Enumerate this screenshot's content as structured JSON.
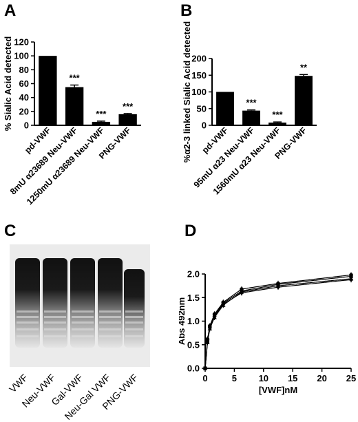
{
  "panels": {
    "a": {
      "letter": "A"
    },
    "b": {
      "letter": "B"
    },
    "c": {
      "letter": "C"
    },
    "d": {
      "letter": "D"
    }
  },
  "chart_data": [
    {
      "panel": "A",
      "type": "bar",
      "ylabel": "% Sialic Acid detected",
      "xlabel": "",
      "categories": [
        "pd-VWF",
        "8mU α23689 Neu-VWF",
        "1250mU α23689 Neu-VWF",
        "PNG-VWF"
      ],
      "values": [
        100,
        55,
        5,
        16
      ],
      "errors": [
        0,
        3,
        1,
        1
      ],
      "significance": [
        "",
        "***",
        "***",
        "***"
      ],
      "ylim": [
        0,
        120
      ],
      "yticks": [
        0,
        20,
        40,
        60,
        80,
        100,
        120
      ],
      "bar_color": "#000000",
      "grid": false
    },
    {
      "panel": "B",
      "type": "bar",
      "ylabel": "%α2-3 linked Sialic Acid detected",
      "xlabel": "",
      "categories": [
        "pd-VWF",
        "95mU α23 Neu-VWF",
        "1560mU α23 Neu-VWF",
        "PNG-VWF"
      ],
      "values": [
        100,
        44,
        8,
        148
      ],
      "errors": [
        0,
        2,
        2,
        4
      ],
      "significance": [
        "",
        "***",
        "***",
        "**"
      ],
      "ylim": [
        0,
        200
      ],
      "yticks": [
        0,
        50,
        100,
        150,
        200
      ],
      "bar_color": "#000000",
      "grid": false
    },
    {
      "panel": "C",
      "type": "gel",
      "lanes": [
        "VWF",
        "Neu-VWF",
        "Gal-VWF",
        "Neu-Gal VWF",
        "PNG-VWF"
      ]
    },
    {
      "panel": "D",
      "type": "line",
      "xlabel": "[VWF]nM",
      "ylabel": "Abs 492nm",
      "xlim": [
        0,
        25
      ],
      "ylim": [
        0,
        2.0
      ],
      "xticks": [
        0,
        5,
        10,
        15,
        20,
        25
      ],
      "yticks": [
        0.0,
        0.5,
        1.0,
        1.5,
        2.0
      ],
      "x": [
        0,
        0.4,
        0.8,
        1.6,
        3.1,
        6.25,
        12.5,
        25
      ],
      "series": [
        {
          "values": [
            0,
            0.62,
            0.9,
            1.15,
            1.4,
            1.68,
            1.8,
            1.98
          ],
          "marker": "circle"
        },
        {
          "values": [
            0,
            0.58,
            0.88,
            1.12,
            1.38,
            1.64,
            1.78,
            1.95
          ],
          "marker": "square"
        },
        {
          "values": [
            0,
            0.55,
            0.84,
            1.08,
            1.34,
            1.62,
            1.75,
            1.9
          ],
          "marker": "triangle"
        },
        {
          "values": [
            0,
            0.6,
            0.86,
            1.1,
            1.36,
            1.6,
            1.72,
            1.88
          ],
          "marker": "diamond"
        }
      ],
      "grid": false
    }
  ]
}
